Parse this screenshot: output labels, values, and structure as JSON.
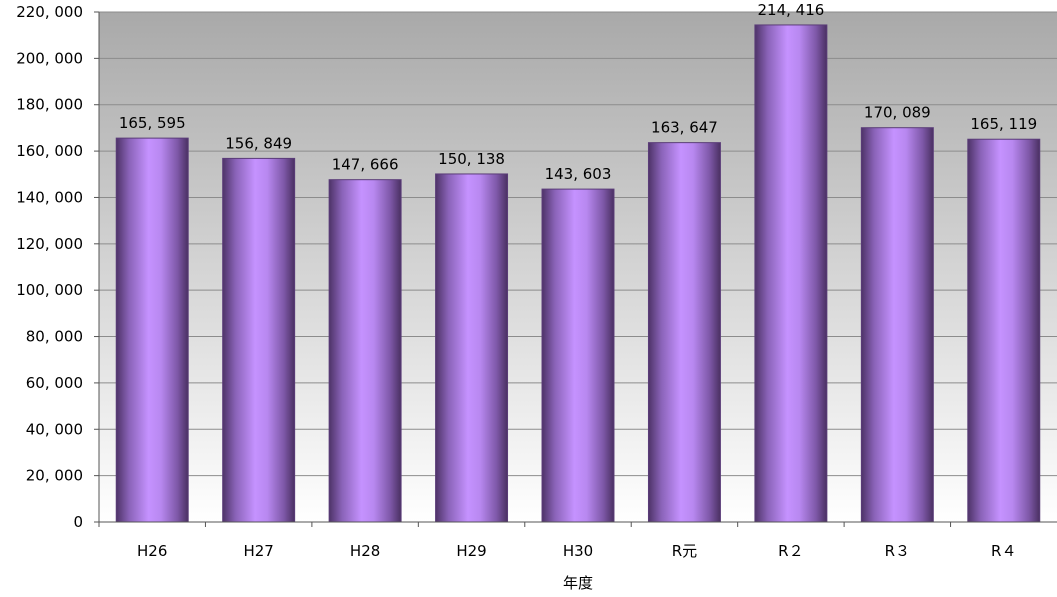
{
  "chart_data": {
    "type": "bar",
    "title": "",
    "xlabel": "年度",
    "ylabel": "",
    "ylim": [
      0,
      220000
    ],
    "ytick_step": 20000,
    "ytick_labels": [
      "0",
      "20, 000",
      "40, 000",
      "60, 000",
      "80, 000",
      "100, 000",
      "120, 000",
      "140, 000",
      "160, 000",
      "180, 000",
      "200, 000",
      "220, 000"
    ],
    "categories": [
      "H26",
      "H27",
      "H28",
      "H29",
      "H30",
      "R元",
      "R２",
      "R３",
      "R４"
    ],
    "values": [
      165595,
      156849,
      147666,
      150138,
      143603,
      163647,
      214416,
      170089,
      165119
    ],
    "value_labels": [
      "165, 595",
      "156, 849",
      "147, 666",
      "150, 138",
      "143, 603",
      "163, 647",
      "214, 416",
      "170, 089",
      "165, 119"
    ],
    "grid": true,
    "legend": "none",
    "bar_color": "#B98AF0",
    "bar_edge_color": "#5A3C78",
    "plot_background_top": "#A9A9A9",
    "plot_background_bottom": "#FFFFFF"
  }
}
